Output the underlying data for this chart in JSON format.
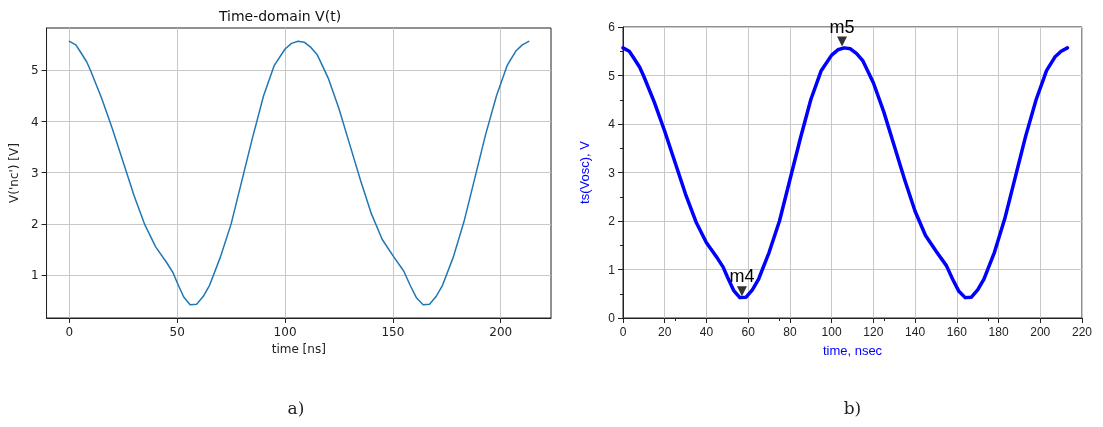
{
  "chart_data": [
    {
      "type": "line",
      "title": "Time-domain V(t)",
      "xlabel": "time [ns]",
      "ylabel": "V('nc') [V]",
      "x": [
        0,
        3,
        5,
        8,
        10,
        15,
        20,
        25,
        30,
        35,
        40,
        45,
        48,
        50,
        53,
        56,
        59,
        62,
        65,
        70,
        75,
        80,
        85,
        90,
        95,
        100,
        103,
        106,
        109,
        112,
        115,
        120,
        125,
        130,
        135,
        140,
        145,
        150,
        155,
        158,
        161,
        164,
        167,
        170,
        173,
        178,
        183,
        188,
        193,
        198,
        203,
        207,
        210,
        213
      ],
      "series": [
        {
          "color": "#1f77b4",
          "values": [
            5.57,
            5.5,
            5.37,
            5.17,
            4.98,
            4.45,
            3.85,
            3.2,
            2.55,
            1.98,
            1.55,
            1.25,
            1.05,
            0.85,
            0.57,
            0.42,
            0.43,
            0.58,
            0.8,
            1.35,
            2.0,
            2.85,
            3.7,
            4.5,
            5.1,
            5.42,
            5.53,
            5.57,
            5.55,
            5.45,
            5.3,
            4.85,
            4.25,
            3.55,
            2.85,
            2.2,
            1.7,
            1.38,
            1.08,
            0.8,
            0.55,
            0.42,
            0.43,
            0.58,
            0.8,
            1.35,
            2.05,
            2.9,
            3.75,
            4.5,
            5.1,
            5.38,
            5.5,
            5.57
          ]
        }
      ],
      "xlim": [
        -10.6,
        223.3
      ],
      "ylim": [
        0.16,
        5.83
      ],
      "xticks": [
        0,
        50,
        100,
        150,
        200
      ],
      "yticks": [
        1,
        2,
        3,
        4,
        5
      ],
      "grid": true,
      "annotations": [
        "a)"
      ]
    },
    {
      "type": "line",
      "xlabel": "time, nsec",
      "ylabel": "ts(Vosc), V",
      "x": [
        0,
        3,
        5,
        8,
        10,
        15,
        20,
        25,
        30,
        35,
        40,
        45,
        48,
        50,
        53,
        56,
        59,
        62,
        65,
        70,
        75,
        80,
        85,
        90,
        95,
        100,
        103,
        106,
        109,
        112,
        115,
        120,
        125,
        130,
        135,
        140,
        145,
        150,
        155,
        158,
        161,
        164,
        167,
        170,
        173,
        178,
        183,
        188,
        193,
        198,
        203,
        207,
        210,
        213
      ],
      "series": [
        {
          "color": "#0000ff",
          "values": [
            5.57,
            5.5,
            5.37,
            5.17,
            4.98,
            4.45,
            3.85,
            3.2,
            2.55,
            1.98,
            1.55,
            1.25,
            1.05,
            0.85,
            0.57,
            0.42,
            0.43,
            0.58,
            0.8,
            1.35,
            2.0,
            2.85,
            3.7,
            4.5,
            5.1,
            5.42,
            5.53,
            5.57,
            5.55,
            5.45,
            5.3,
            4.85,
            4.25,
            3.55,
            2.85,
            2.2,
            1.7,
            1.38,
            1.08,
            0.8,
            0.55,
            0.42,
            0.43,
            0.58,
            0.8,
            1.35,
            2.05,
            2.9,
            3.75,
            4.5,
            5.1,
            5.38,
            5.5,
            5.57
          ]
        },
        {
          "type": "scatter",
          "marker": "triangle",
          "color": "#000000",
          "x": [
            57,
            105
          ],
          "values": [
            0.55,
            5.7
          ]
        }
      ],
      "xlim": [
        0,
        220
      ],
      "ylim": [
        0,
        6
      ],
      "xticks": [
        0,
        20,
        40,
        60,
        80,
        100,
        120,
        140,
        160,
        180,
        200,
        220
      ],
      "yticks": [
        0,
        1,
        2,
        3,
        4,
        5,
        6
      ],
      "grid": true,
      "annotations": [
        {
          "text": "m4",
          "x": 57,
          "y": 0.55
        },
        {
          "text": "m5",
          "x": 105,
          "y": 5.7
        },
        "b)"
      ]
    }
  ]
}
